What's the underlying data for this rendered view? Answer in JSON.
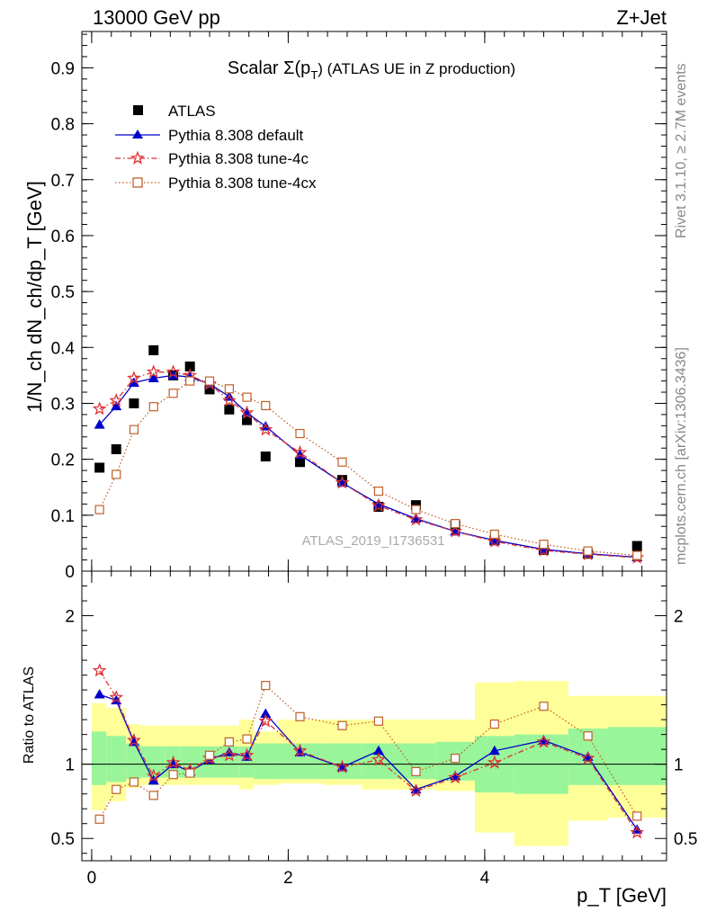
{
  "header": {
    "energy_label": "13000 GeV pp",
    "process_label": "Z+Jet"
  },
  "plot_title": {
    "prefix": "Scalar Σ(p",
    "sub": "T",
    "suffix": ") (ATLAS UE in Z production)"
  },
  "side_labels": {
    "rivet": "Rivet 3.1.10, ≥ 2.7M events",
    "mcplots": "mcplots.cern.ch [arXiv:1306.3436]"
  },
  "watermark": "ATLAS_2019_I1736531",
  "ratio_ylabel": "Ratio to ATLAS",
  "legend": [
    "ATLAS",
    "Pythia 8.308 default",
    "Pythia 8.308 tune-4c",
    "Pythia 8.308 tune-4cx"
  ],
  "colors": {
    "atlas": "#000000",
    "default": "#0000cc",
    "tune4c": "#dd3333",
    "tune4cx": "#c0602a",
    "band_inner": "#99f599",
    "band_outer": "#ffff99"
  },
  "chart_data": [
    {
      "type": "scatter",
      "panel": "main",
      "xlabel": "p_T [GeV]",
      "ylabel": "1/N_ch dN_ch/dp_T [GeV]",
      "xlim": [
        -0.1,
        5.85
      ],
      "ylim": [
        0,
        0.965
      ],
      "yticks": [
        0,
        0.1,
        0.2,
        0.3,
        0.4,
        0.5,
        0.6,
        0.7,
        0.8,
        0.9
      ],
      "ytick_labels": [
        "0",
        "0.1",
        "0.2",
        "0.3",
        "0.4",
        "0.5",
        "0.6",
        "0.7",
        "0.8",
        "0.9"
      ],
      "x": [
        0.08,
        0.25,
        0.43,
        0.63,
        0.83,
        1.0,
        1.2,
        1.4,
        1.58,
        1.77,
        2.12,
        2.55,
        2.92,
        3.3,
        3.7,
        4.1,
        4.6,
        5.05,
        5.55
      ],
      "series": [
        {
          "name": "ATLAS",
          "values": [
            0.185,
            0.218,
            0.3,
            0.395,
            0.35,
            0.366,
            0.325,
            0.289,
            0.27,
            0.205,
            0.195,
            0.163,
            0.115,
            0.118,
            0.082,
            0.055,
            0.038,
            0.031,
            0.045
          ]
        },
        {
          "name": "Pythia 8.308 default",
          "values": [
            0.262,
            0.295,
            0.337,
            0.345,
            0.35,
            0.347,
            0.335,
            0.312,
            0.283,
            0.259,
            0.208,
            0.158,
            0.12,
            0.094,
            0.071,
            0.055,
            0.039,
            0.031,
            0.025
          ]
        },
        {
          "name": "Pythia 8.308 tune-4c",
          "values": [
            0.29,
            0.305,
            0.345,
            0.356,
            0.356,
            0.35,
            0.335,
            0.305,
            0.283,
            0.253,
            0.212,
            0.158,
            0.117,
            0.092,
            0.071,
            0.053,
            0.037,
            0.03,
            0.024
          ]
        },
        {
          "name": "Pythia 8.308 tune-4cx",
          "values": [
            0.11,
            0.173,
            0.253,
            0.294,
            0.318,
            0.34,
            0.34,
            0.326,
            0.311,
            0.296,
            0.246,
            0.195,
            0.143,
            0.11,
            0.085,
            0.066,
            0.048,
            0.036,
            0.028
          ]
        }
      ]
    },
    {
      "type": "line",
      "panel": "ratio",
      "xlabel": "p_T [GeV]",
      "ylabel": "Ratio to ATLAS",
      "xlim": [
        -0.1,
        5.85
      ],
      "ylim": [
        0.35,
        2.3
      ],
      "xticks": [
        0,
        2,
        4
      ],
      "xtick_labels": [
        "0",
        "2",
        "4"
      ],
      "yticks": [
        0.5,
        1,
        2
      ],
      "ytick_labels": [
        "0.5",
        "1",
        "2"
      ],
      "x": [
        0.08,
        0.25,
        0.43,
        0.63,
        0.83,
        1.0,
        1.2,
        1.4,
        1.58,
        1.77,
        2.12,
        2.55,
        2.92,
        3.3,
        3.7,
        4.1,
        4.6,
        5.05,
        5.55
      ],
      "bin_edges": [
        0.0,
        0.15,
        0.35,
        0.5,
        0.75,
        0.9,
        1.1,
        1.3,
        1.5,
        1.65,
        1.9,
        2.35,
        2.75,
        3.1,
        3.5,
        3.9,
        4.3,
        4.85,
        5.25,
        5.85
      ],
      "bands": {
        "inner": {
          "lo": [
            0.86,
            0.88,
            0.9,
            0.91,
            0.91,
            0.91,
            0.91,
            0.91,
            0.91,
            0.9,
            0.9,
            0.9,
            0.9,
            0.9,
            0.89,
            0.81,
            0.8,
            0.86,
            0.86
          ],
          "hi": [
            1.22,
            1.19,
            1.14,
            1.12,
            1.12,
            1.12,
            1.12,
            1.12,
            1.12,
            1.14,
            1.14,
            1.14,
            1.14,
            1.14,
            1.15,
            1.19,
            1.2,
            1.24,
            1.25
          ]
        },
        "outer": {
          "lo": [
            0.69,
            0.75,
            0.84,
            0.86,
            0.86,
            0.86,
            0.86,
            0.86,
            0.83,
            0.86,
            0.87,
            0.86,
            0.83,
            0.83,
            0.82,
            0.54,
            0.45,
            0.62,
            0.64
          ]
        }
      },
      "outer_band_hi": [
        1.41,
        1.38,
        1.27,
        1.26,
        1.26,
        1.26,
        1.26,
        1.26,
        1.3,
        1.22,
        1.3,
        1.3,
        1.3,
        1.3,
        1.3,
        1.55,
        1.56,
        1.46,
        1.46
      ],
      "reference": 1,
      "series": [
        {
          "name": "Pythia 8.308 default",
          "values": [
            1.47,
            1.43,
            1.15,
            0.89,
            1.0,
            0.95,
            1.03,
            1.08,
            1.05,
            1.34,
            1.08,
            0.98,
            1.09,
            0.83,
            0.92,
            1.09,
            1.16,
            1.05,
            0.56
          ]
        },
        {
          "name": "Pythia 8.308 tune-4c",
          "values": [
            1.63,
            1.45,
            1.16,
            0.92,
            1.01,
            0.96,
            1.04,
            1.06,
            1.06,
            1.29,
            1.09,
            0.98,
            1.03,
            0.82,
            0.91,
            1.01,
            1.15,
            1.04,
            0.54
          ]
        },
        {
          "name": "Pythia 8.308 tune-4cx",
          "values": [
            0.63,
            0.83,
            0.88,
            0.79,
            0.93,
            0.94,
            1.06,
            1.15,
            1.17,
            1.53,
            1.32,
            1.26,
            1.29,
            0.95,
            1.04,
            1.27,
            1.39,
            1.19,
            0.65
          ]
        }
      ]
    }
  ]
}
